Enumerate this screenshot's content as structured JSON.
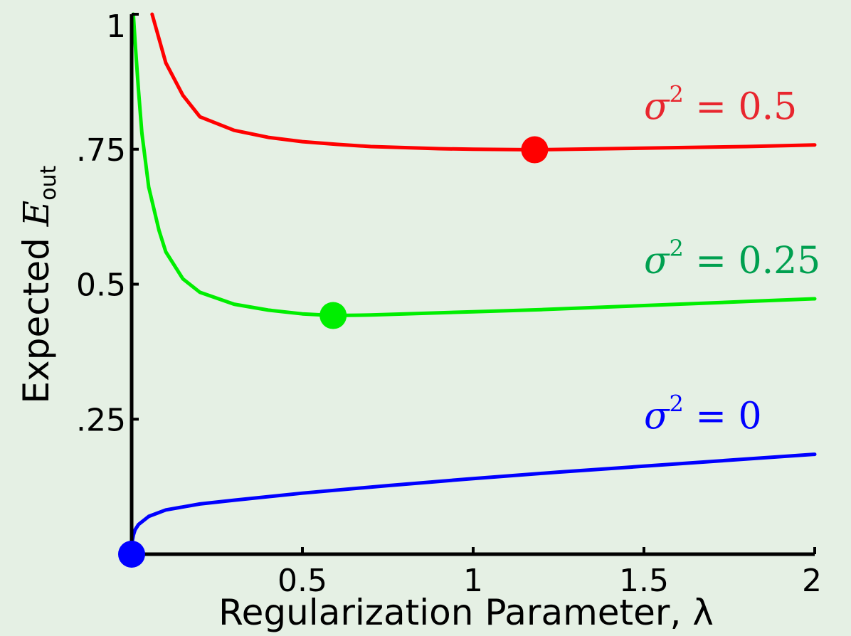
{
  "chart_data": {
    "type": "line",
    "xlabel": "Regularization Parameter, λ",
    "ylabel_text": "Expected",
    "ylabel_symbol": "E",
    "ylabel_subscript": "out",
    "xlim": [
      0,
      2
    ],
    "ylim": [
      0,
      1
    ],
    "x_ticks": [
      {
        "value": 0.5,
        "label": "0.5"
      },
      {
        "value": 1,
        "label": "1"
      },
      {
        "value": 1.5,
        "label": "1.5"
      },
      {
        "value": 2,
        "label": "2"
      }
    ],
    "y_ticks": [
      {
        "value": 0.25,
        "label": ".25"
      },
      {
        "value": 0.5,
        "label": "0.5"
      },
      {
        "value": 0.75,
        "label": ".75"
      },
      {
        "value": 1,
        "label": "1"
      }
    ],
    "grid": false,
    "legend": "none",
    "series": [
      {
        "name": "σ² = 0.5",
        "label_main": "σ",
        "label_sup": "2",
        "label_rest": " = 0.5",
        "color": "#ff0000",
        "label_color": "#e8262e",
        "x": [
          0.06,
          0.1,
          0.15,
          0.2,
          0.3,
          0.4,
          0.5,
          0.6,
          0.7,
          0.8,
          0.9,
          1.0,
          1.18,
          1.4,
          1.6,
          1.8,
          2.0
        ],
        "y": [
          1.0,
          0.91,
          0.85,
          0.81,
          0.785,
          0.772,
          0.764,
          0.759,
          0.755,
          0.753,
          0.751,
          0.75,
          0.749,
          0.751,
          0.753,
          0.755,
          0.758
        ],
        "minimum": {
          "x": 1.18,
          "y": 0.749
        }
      },
      {
        "name": "σ² = 0.25",
        "label_main": "σ",
        "label_sup": "2",
        "label_rest": " = 0.25",
        "color": "#00ee00",
        "label_color": "#00a050",
        "x": [
          0.005,
          0.01,
          0.02,
          0.03,
          0.05,
          0.08,
          0.1,
          0.15,
          0.2,
          0.3,
          0.4,
          0.5,
          0.59,
          0.7,
          0.8,
          1.0,
          1.2,
          1.4,
          1.6,
          1.8,
          2.0
        ],
        "y": [
          1.0,
          0.95,
          0.86,
          0.78,
          0.68,
          0.6,
          0.56,
          0.51,
          0.485,
          0.463,
          0.452,
          0.445,
          0.442,
          0.443,
          0.445,
          0.449,
          0.453,
          0.458,
          0.463,
          0.468,
          0.473
        ],
        "minimum": {
          "x": 0.59,
          "y": 0.442
        }
      },
      {
        "name": "σ² = 0",
        "label_main": "σ",
        "label_sup": "2",
        "label_rest": " = 0",
        "color": "#0000ff",
        "label_color": "#0000ff",
        "x": [
          0,
          0.002,
          0.005,
          0.01,
          0.02,
          0.05,
          0.1,
          0.2,
          0.3,
          0.5,
          0.75,
          1.0,
          1.25,
          1.5,
          1.75,
          2.0
        ],
        "y": [
          0.0,
          0.025,
          0.035,
          0.045,
          0.055,
          0.07,
          0.082,
          0.093,
          0.1,
          0.113,
          0.127,
          0.14,
          0.152,
          0.163,
          0.174,
          0.185
        ],
        "minimum": {
          "x": 0,
          "y": 0
        }
      }
    ]
  }
}
